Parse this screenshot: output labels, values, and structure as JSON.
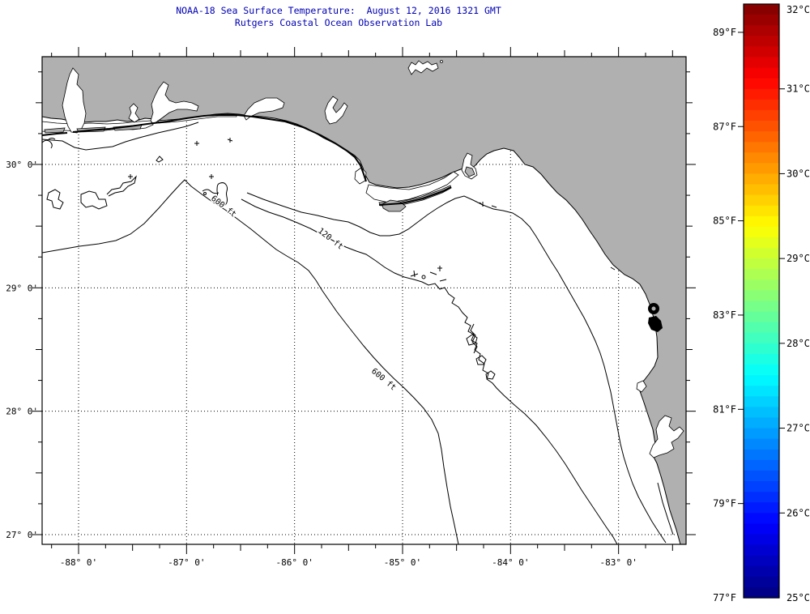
{
  "title": {
    "line1": "NOAA-18 Sea Surface Temperature:  August 12, 2016 1321 GMT",
    "line2": "Rutgers Coastal Ocean Observation Lab"
  },
  "map": {
    "x_axis": {
      "labeled_ticks": [
        {
          "value": -88,
          "label": "-88° 0'"
        },
        {
          "value": -87,
          "label": "-87° 0'"
        },
        {
          "value": -86,
          "label": "-86° 0'"
        },
        {
          "value": -85,
          "label": "-85° 0'"
        },
        {
          "value": -84,
          "label": "-84° 0'"
        },
        {
          "value": -83,
          "label": "-83° 0'"
        }
      ]
    },
    "y_axis": {
      "labeled_ticks": [
        {
          "value": 30,
          "label": "30° 0'"
        },
        {
          "value": 29,
          "label": "29° 0'"
        },
        {
          "value": 28,
          "label": "28° 0'"
        },
        {
          "value": 27,
          "label": "27° 0'"
        }
      ]
    },
    "contour_labels": [
      {
        "text": "600 ft"
      },
      {
        "text": "120 ft"
      },
      {
        "text": "600 ft"
      }
    ],
    "colors": {
      "land": "#b0b0b0",
      "water": "#ffffff",
      "line": "#000000",
      "title_text": "#0000b3"
    }
  },
  "colorbar": {
    "colormap": "jet",
    "bands": 56,
    "scale_min_c": 25,
    "scale_max_c": 32,
    "celsius_labels": [
      {
        "value": 32,
        "label": "32°C"
      },
      {
        "value": 31,
        "label": "31°C"
      },
      {
        "value": 30,
        "label": "30°C"
      },
      {
        "value": 29,
        "label": "29°C"
      },
      {
        "value": 28,
        "label": "28°C"
      },
      {
        "value": 27,
        "label": "27°C"
      },
      {
        "value": 26,
        "label": "26°C"
      },
      {
        "value": 25,
        "label": "25°C"
      }
    ],
    "fahrenheit_labels": [
      {
        "value": 89,
        "label": "89°F"
      },
      {
        "value": 87,
        "label": "87°F"
      },
      {
        "value": 85,
        "label": "85°F"
      },
      {
        "value": 83,
        "label": "83°F"
      },
      {
        "value": 81,
        "label": "81°F"
      },
      {
        "value": 79,
        "label": "79°F"
      },
      {
        "value": 77,
        "label": "77°F"
      }
    ]
  }
}
